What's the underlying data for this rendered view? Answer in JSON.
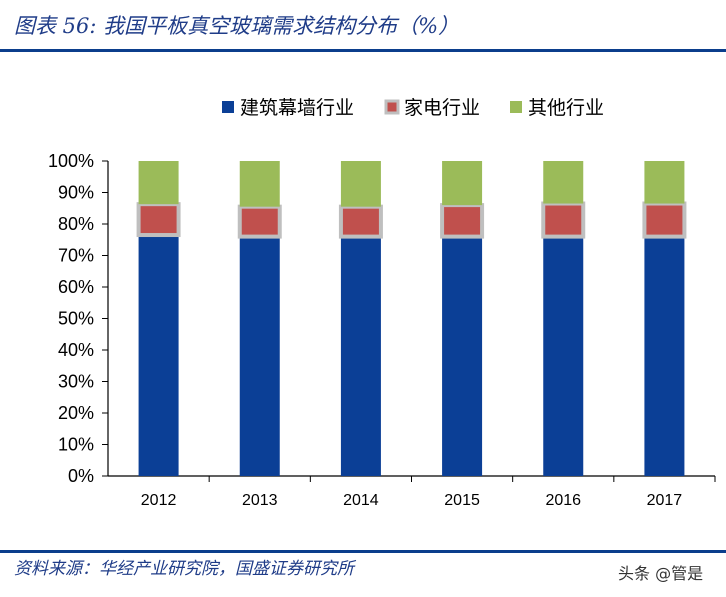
{
  "header": {
    "title": "图表 56:  我国平板真空玻璃需求结构分布（%）"
  },
  "footer": {
    "source": "资料来源：华经产业研究院，国盛证券研究所",
    "watermark": "头条 @管是"
  },
  "chart_data": {
    "type": "bar",
    "stacked": true,
    "title": "",
    "xlabel": "",
    "ylabel": "",
    "ylim": [
      0,
      100
    ],
    "y_ticks": [
      "0%",
      "10%",
      "20%",
      "30%",
      "40%",
      "50%",
      "60%",
      "70%",
      "80%",
      "90%",
      "100%"
    ],
    "categories": [
      "2012",
      "2013",
      "2014",
      "2015",
      "2016",
      "2017"
    ],
    "legend_position": "top",
    "grid": false,
    "series": [
      {
        "name": "建筑幕墙行业",
        "color": "#0b3f96",
        "values": [
          76.5,
          76,
          76,
          76,
          76,
          76
        ]
      },
      {
        "name": "家电行业",
        "color": "#c0504d",
        "values": [
          9.8,
          9.5,
          9.5,
          10,
          10.5,
          10.5
        ]
      },
      {
        "name": "其他行业",
        "color": "#9bbb59",
        "values": [
          13.7,
          14.5,
          14.5,
          14,
          13.5,
          13.5
        ]
      }
    ]
  }
}
